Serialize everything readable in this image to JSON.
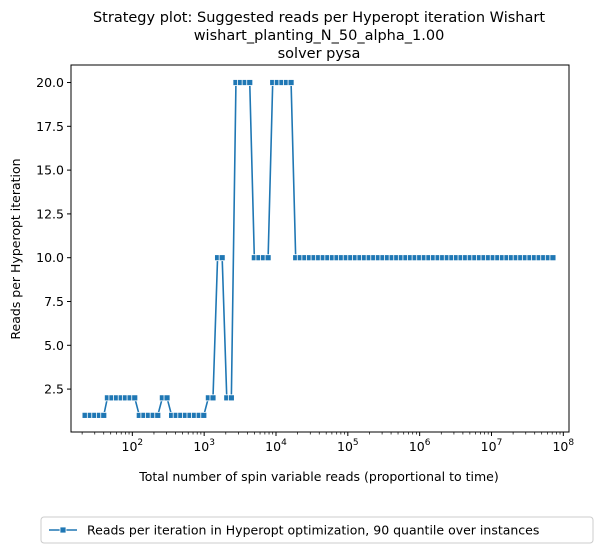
{
  "chart_data": {
    "type": "line",
    "title": [
      "Strategy plot: Suggested reads per Hyperopt iteration Wishart",
      "wishart_planting_N_50_alpha_1.00",
      "solver pysa"
    ],
    "xlabel": "Total number of spin variable reads (proportional to time)",
    "ylabel": "Reads per Hyperopt iteration",
    "xscale": "log",
    "xlim": [
      14,
      120000000
    ],
    "ylim": [
      0.05,
      21.0
    ],
    "xticks": [
      {
        "base": "10",
        "exp": "2"
      },
      {
        "base": "10",
        "exp": "3"
      },
      {
        "base": "10",
        "exp": "4"
      },
      {
        "base": "10",
        "exp": "5"
      },
      {
        "base": "10",
        "exp": "6"
      },
      {
        "base": "10",
        "exp": "7"
      },
      {
        "base": "10",
        "exp": "8"
      }
    ],
    "yticks": [
      "2.5",
      "5.0",
      "7.5",
      "10.0",
      "12.5",
      "15.0",
      "17.5",
      "20.0"
    ],
    "grid": false,
    "legend_position": "bottom-center-outside",
    "colors": {
      "series": "#1f77b4"
    },
    "series": [
      {
        "name": "Reads per iteration in Hyperopt optimization, 90 quantile over instances",
        "marker": "square",
        "x": [
          22,
          26,
          30,
          35,
          40,
          45,
          52,
          60,
          70,
          80,
          93,
          108,
          125,
          145,
          168,
          195,
          226,
          262,
          304,
          352,
          408,
          473,
          548,
          635,
          736,
          853,
          988,
          1145,
          1327,
          1537,
          1781,
          2064,
          2391,
          2770,
          3210,
          3720,
          4310,
          4994,
          5786,
          6704,
          7768,
          9000,
          10430,
          12090,
          14000,
          16220,
          18800,
          21780,
          25240,
          29240,
          33880,
          39250,
          45480,
          52700,
          61060,
          70740,
          81960,
          94960,
          110000,
          127500,
          147700,
          171200,
          198300,
          229800,
          266200,
          308500,
          357400,
          414100,
          479800,
          555900,
          644100,
          746300,
          864700,
          1002000,
          1161000,
          1345000,
          1558000,
          1806000,
          2092000,
          2424000,
          2809000,
          3254000,
          3771000,
          4369000,
          5062000,
          5865000,
          6795000,
          7873000,
          9122000,
          10570000,
          12250000,
          14190000,
          16440000,
          19050000,
          22070000,
          25570000,
          29630000,
          34330000,
          39780000,
          46090000,
          53400000,
          61870000,
          71690000
        ],
        "y": [
          1,
          1,
          1,
          1,
          1,
          2,
          2,
          2,
          2,
          2,
          2,
          2,
          1,
          1,
          1,
          1,
          1,
          2,
          2,
          1,
          1,
          1,
          1,
          1,
          1,
          1,
          1,
          2,
          2,
          10,
          10,
          2,
          2,
          20,
          20,
          20,
          20,
          10,
          10,
          10,
          10,
          20,
          20,
          20,
          20,
          20,
          10,
          10,
          10,
          10,
          10,
          10,
          10,
          10,
          10,
          10,
          10,
          10,
          10,
          10,
          10,
          10,
          10,
          10,
          10,
          10,
          10,
          10,
          10,
          10,
          10,
          10,
          10,
          10,
          10,
          10,
          10,
          10,
          10,
          10,
          10,
          10,
          10,
          10,
          10,
          10,
          10,
          10,
          10,
          10,
          10,
          10,
          10,
          10,
          10,
          10,
          10,
          10,
          10,
          10,
          10,
          10,
          10
        ]
      }
    ]
  }
}
